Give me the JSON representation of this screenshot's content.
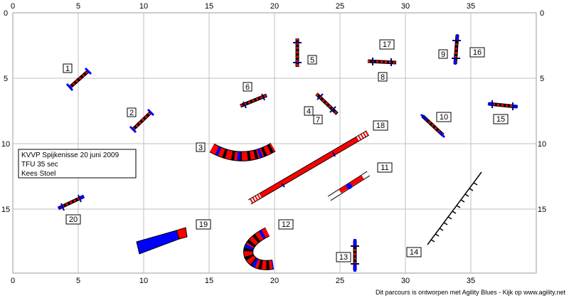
{
  "axes": {
    "x_ticks_top": [
      "0",
      "5",
      "10",
      "15",
      "20",
      "25",
      "30",
      "35"
    ],
    "x_ticks_bottom": [
      "0",
      "5",
      "10",
      "15",
      "20",
      "25",
      "30",
      "35"
    ],
    "y_ticks_left": [
      "0",
      "5",
      "10",
      "15"
    ],
    "y_ticks_right": [
      "0",
      "5",
      "10",
      "15"
    ]
  },
  "info_box": {
    "line1": "KVVP Spijkenisse 20 juni 2009",
    "line2": "TFU 35 sec",
    "line3": "Kees Stoel"
  },
  "footer": "Dit parcours is ontworpen met Agility Blues - Kijk op www.agility.net",
  "obstacles": [
    {
      "num": "1"
    },
    {
      "num": "2"
    },
    {
      "num": "3"
    },
    {
      "num": "4"
    },
    {
      "num": "5"
    },
    {
      "num": "6"
    },
    {
      "num": "7"
    },
    {
      "num": "8"
    },
    {
      "num": "9"
    },
    {
      "num": "10"
    },
    {
      "num": "11"
    },
    {
      "num": "12"
    },
    {
      "num": "13"
    },
    {
      "num": "14"
    },
    {
      "num": "15"
    },
    {
      "num": "16"
    },
    {
      "num": "17"
    },
    {
      "num": "18"
    },
    {
      "num": "19"
    },
    {
      "num": "20"
    }
  ],
  "colors": {
    "grid": "#bfbfbf",
    "red": "#ff0000",
    "blue": "#0000ff",
    "navy": "#000080"
  }
}
